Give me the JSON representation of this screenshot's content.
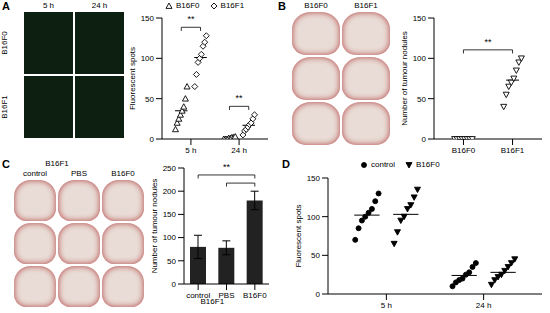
{
  "chart_data": [
    {
      "panel": "A",
      "type": "scatter",
      "y_label": "Fluorescent spots",
      "categories": [
        "5 h",
        "24 h"
      ],
      "ylim": [
        0,
        150
      ],
      "yticks": [
        0,
        50,
        100,
        150
      ],
      "images": {
        "columns": [
          "5 h",
          "24 h"
        ],
        "rows": [
          "B16F0",
          "B16F1"
        ],
        "color": "#0d1f10"
      },
      "legend": "top",
      "series": [
        {
          "name": "B16F0",
          "marker": "open triangle",
          "color": "#000000",
          "values": [
            [
              12,
              20,
              25,
              30,
              35,
              40,
              50,
              65
            ],
            [
              0,
              0,
              0,
              1,
              1,
              2,
              2,
              3
            ]
          ],
          "means": [
            35,
            1
          ]
        },
        {
          "name": "B16F1",
          "marker": "open diamond",
          "color": "#000000",
          "values": [
            [
              65,
              80,
              95,
              100,
              105,
              115,
              120,
              128
            ],
            [
              5,
              10,
              12,
              15,
              18,
              20,
              25,
              30
            ]
          ],
          "means": [
            101,
            17
          ]
        }
      ],
      "annotations": [
        {
          "text": "**",
          "category": "5 h"
        },
        {
          "text": "**",
          "category": "24 h"
        }
      ]
    },
    {
      "panel": "B",
      "type": "scatter",
      "y_label": "Number of tumour nodules",
      "categories": [
        "B16F0",
        "B16F1"
      ],
      "ylim": [
        0,
        150
      ],
      "yticks": [
        0,
        50,
        100,
        150
      ],
      "images": {
        "columns": [
          "B16F0",
          "B16F1"
        ],
        "rows": 3,
        "color": "#e9dcd6"
      },
      "series": [
        {
          "name": "Number of tumour nodules",
          "marker": "open inverted triangle",
          "color": "#000000",
          "values": [
            [
              0,
              0,
              0,
              0,
              0,
              0,
              0,
              0
            ],
            [
              40,
              55,
              65,
              70,
              75,
              85,
              95,
              100
            ]
          ],
          "means": [
            0,
            73
          ]
        }
      ],
      "annotations": [
        {
          "text": "**",
          "pairs": [
            [
              "B16F0",
              "B16F1"
            ]
          ]
        }
      ]
    },
    {
      "panel": "C",
      "type": "bar",
      "y_label": "Number of tumour nodules",
      "categories": [
        "control",
        "PBS",
        "B16F0"
      ],
      "values": [
        80,
        78,
        180
      ],
      "errors": [
        25,
        15,
        20
      ],
      "color": "#222222",
      "ylim": [
        0,
        250
      ],
      "yticks": [
        0,
        50,
        100,
        150,
        200,
        250
      ],
      "x_group": {
        "label": "B16F1",
        "categories": [
          "control",
          "PBS"
        ]
      },
      "images": {
        "group": "B16F1",
        "group_columns": 2,
        "columns": [
          "control",
          "PBS",
          "B16F0"
        ],
        "rows": 3,
        "color": "#e9dcd6"
      },
      "annotations": [
        {
          "text": "**",
          "pairs": [
            [
              "control",
              "B16F0"
            ],
            [
              "PBS",
              "B16F0"
            ]
          ]
        }
      ]
    },
    {
      "panel": "D",
      "type": "scatter",
      "y_label": "Fluorescent spots",
      "categories": [
        "5 h",
        "24 h"
      ],
      "ylim": [
        0,
        150
      ],
      "yticks": [
        0,
        50,
        100,
        150
      ],
      "legend": "top",
      "series": [
        {
          "name": "control",
          "marker": "circle",
          "color": "#000000",
          "values": [
            [
              70,
              85,
              95,
              100,
              105,
              110,
              120,
              130
            ],
            [
              10,
              15,
              18,
              20,
              25,
              28,
              35,
              40
            ]
          ],
          "means": [
            102,
            24
          ]
        },
        {
          "name": "B16F0",
          "marker": "inverted triangle",
          "color": "#000000",
          "values": [
            [
              65,
              80,
              95,
              100,
              110,
              115,
              125,
              135
            ],
            [
              12,
              18,
              22,
              25,
              30,
              35,
              40,
              45
            ]
          ],
          "means": [
            103,
            28
          ]
        }
      ]
    }
  ]
}
